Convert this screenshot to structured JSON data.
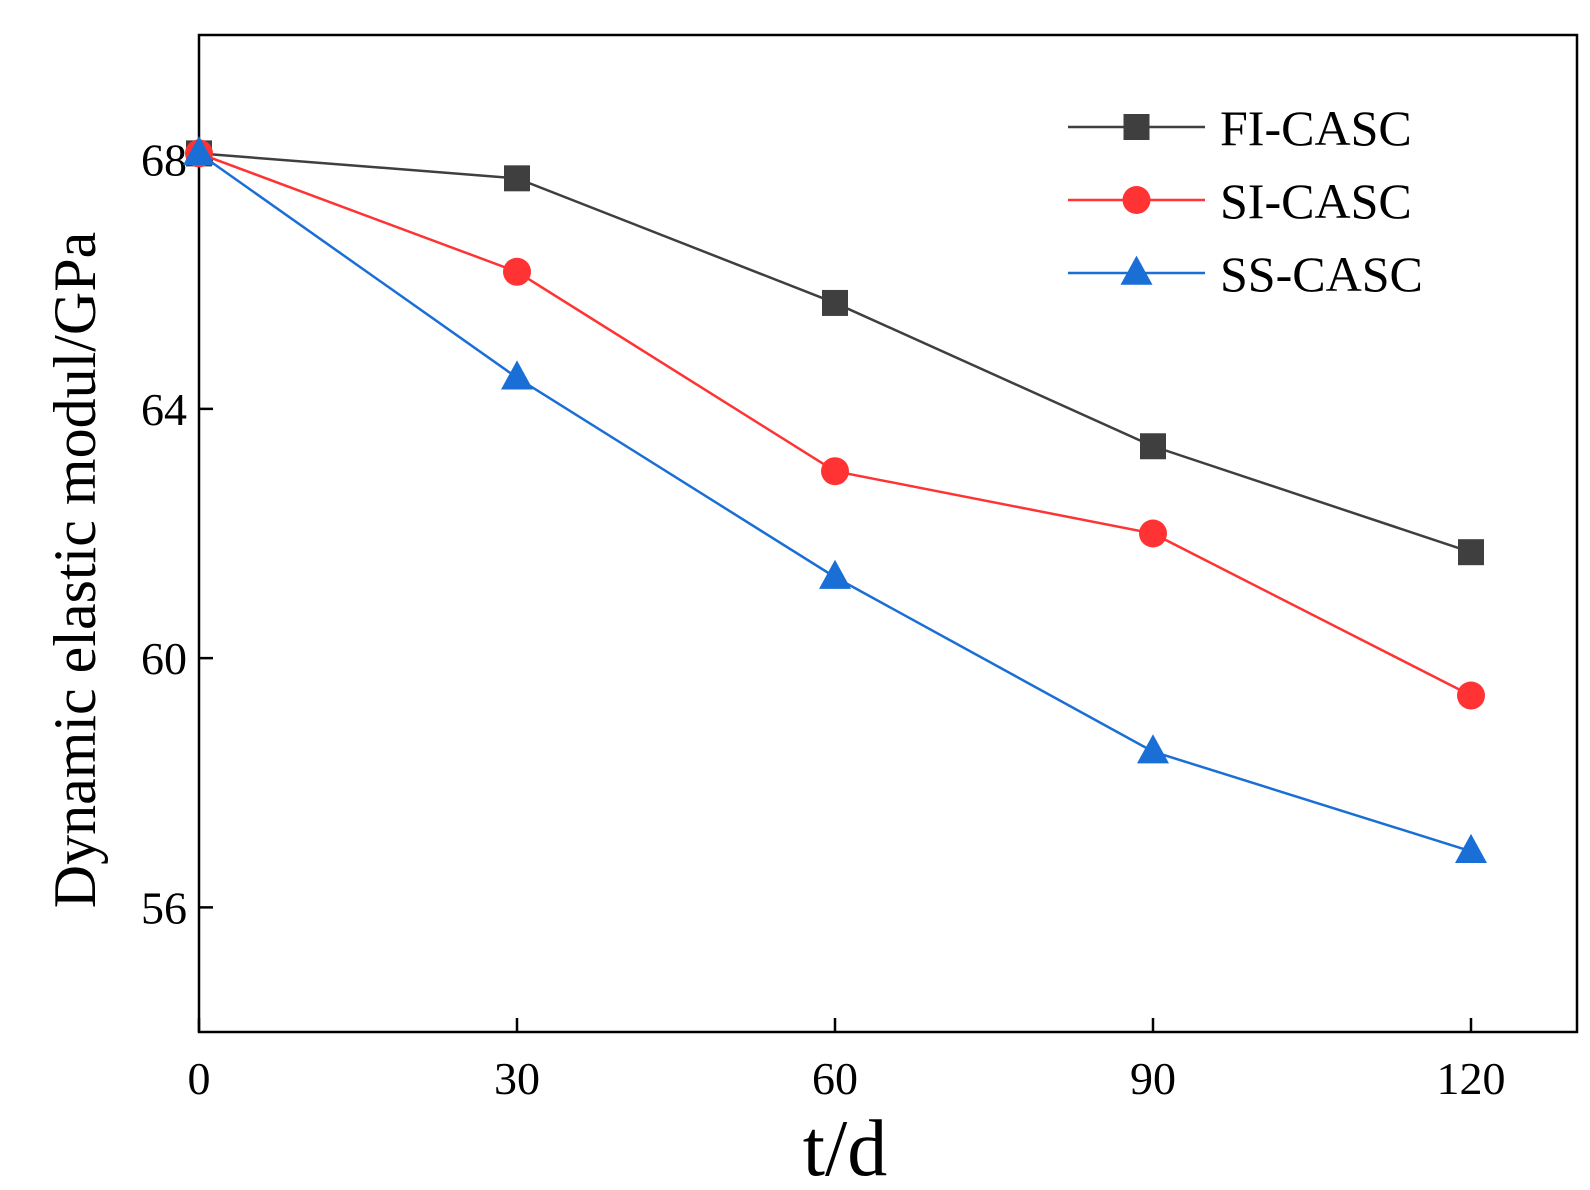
{
  "chart_data": {
    "type": "line",
    "title": "",
    "xlabel": "t/d",
    "ylabel": "Dynamic elastic modul/GPa",
    "x": [
      0,
      30,
      60,
      90,
      120
    ],
    "xticks": [
      0,
      30,
      60,
      90,
      120
    ],
    "xtick_labels": [
      "0",
      "30",
      "60",
      "90",
      "120"
    ],
    "yticks": [
      56,
      60,
      64,
      68
    ],
    "ytick_labels": [
      "56",
      "60",
      "64",
      "68"
    ],
    "xlim": [
      0,
      130
    ],
    "ylim": [
      54,
      70
    ],
    "grid": false,
    "legend_position": "top-right",
    "series": [
      {
        "name": "FI-CASC",
        "values": [
          68.1,
          67.7,
          65.7,
          63.4,
          61.7
        ],
        "color": "#3f3f3f",
        "marker": "square"
      },
      {
        "name": "SI-CASC",
        "values": [
          68.1,
          66.2,
          63.0,
          62.0,
          59.4
        ],
        "color": "#ff3333",
        "marker": "circle"
      },
      {
        "name": "SS-CASC",
        "values": [
          68.1,
          64.5,
          61.3,
          58.5,
          56.9
        ],
        "color": "#1a6fd6",
        "marker": "triangle"
      }
    ]
  }
}
